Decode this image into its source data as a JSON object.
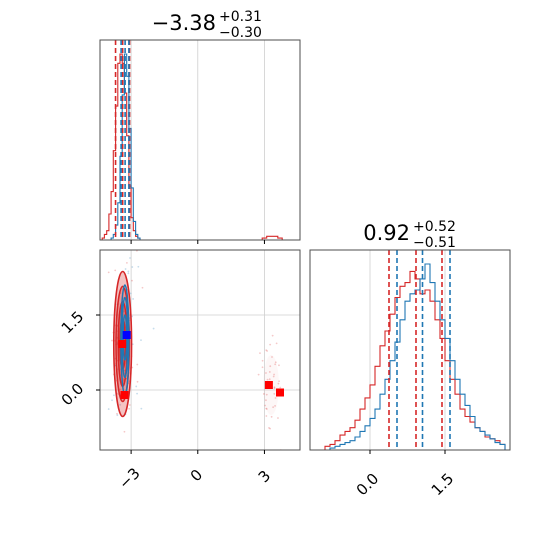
{
  "colors": {
    "series_red": "#d62728",
    "series_blue": "#1f77b4",
    "marker_blue": "#0000ff",
    "marker_red": "#ff0000"
  },
  "chart_data": {
    "type": "corner",
    "series": [
      {
        "name": "",
        "color": "#d62728"
      },
      {
        "name": "",
        "color": "#1f77b4"
      }
    ],
    "panels": [
      {
        "id": "param1-hist",
        "type": "histogram",
        "title": {
          "median": "−3.38",
          "plus": "+0.31",
          "minus": "−0.30"
        },
        "xlim": [
          -4.4,
          4.6
        ],
        "x_gridlines": [
          -3,
          0,
          3
        ],
        "quantile_lines": {
          "red": [
            -3.7,
            -3.38,
            -3.07
          ],
          "blue": [
            -3.45,
            -3.27,
            -3.1
          ]
        },
        "bins": [
          -4.3,
          -4.2,
          -4.1,
          -4.0,
          -3.9,
          -3.8,
          -3.7,
          -3.6,
          -3.5,
          -3.4,
          -3.3,
          -3.2,
          -3.1,
          -3.0,
          -2.9,
          -2.8,
          -2.7,
          -2.6,
          2.8,
          2.9,
          3.0,
          3.1,
          3.2,
          3.3,
          3.4,
          3.5,
          3.6,
          3.7,
          3.8,
          3.9
        ],
        "red_counts": [
          1,
          3,
          5,
          14,
          26,
          48,
          72,
          95,
          100,
          95,
          79,
          56,
          29,
          12,
          5,
          2,
          1,
          0,
          0,
          1,
          1,
          2,
          2,
          2,
          2,
          2,
          1,
          1,
          0,
          0
        ],
        "blue_counts": [
          0,
          0,
          0,
          0,
          1,
          3,
          8,
          20,
          45,
          78,
          100,
          88,
          60,
          28,
          10,
          3,
          1,
          0,
          0,
          0,
          0,
          0,
          0,
          0,
          0,
          0,
          0,
          0,
          0,
          0
        ]
      },
      {
        "id": "param2-hist",
        "type": "histogram",
        "title": {
          "median": "0.92",
          "plus": "+0.52",
          "minus": "−0.51"
        },
        "xlim": [
          -1.2,
          2.8
        ],
        "x_ticks": [
          0.0,
          1.5
        ],
        "tick_labels": [
          "0.0",
          "1.5"
        ],
        "x_gridlines": [
          0.0,
          1.5
        ],
        "quantile_lines": {
          "red": [
            0.38,
            0.92,
            1.44
          ],
          "blue": [
            0.54,
            1.05,
            1.6
          ]
        },
        "bins": [
          -0.9,
          -0.8,
          -0.7,
          -0.6,
          -0.5,
          -0.4,
          -0.3,
          -0.2,
          -0.1,
          0.0,
          0.1,
          0.2,
          0.3,
          0.4,
          0.5,
          0.6,
          0.7,
          0.8,
          0.9,
          1.0,
          1.1,
          1.2,
          1.3,
          1.4,
          1.5,
          1.6,
          1.7,
          1.8,
          1.9,
          2.0,
          2.1,
          2.2,
          2.3,
          2.4,
          2.5,
          2.6
        ],
        "red_counts": [
          2,
          3,
          5,
          8,
          10,
          12,
          16,
          22,
          28,
          35,
          45,
          56,
          64,
          73,
          82,
          88,
          90,
          96,
          92,
          84,
          86,
          80,
          70,
          60,
          48,
          38,
          30,
          22,
          18,
          15,
          12,
          10,
          7,
          6,
          5,
          3
        ],
        "blue_counts": [
          0,
          1,
          2,
          3,
          4,
          5,
          7,
          10,
          13,
          17,
          22,
          30,
          38,
          48,
          58,
          70,
          80,
          84,
          86,
          92,
          100,
          90,
          80,
          70,
          60,
          48,
          38,
          30,
          24,
          18,
          12,
          10,
          8,
          6,
          4,
          3
        ]
      },
      {
        "id": "joint-2d",
        "type": "contour",
        "xlim": [
          -4.4,
          4.6
        ],
        "ylim": [
          -1.2,
          2.8
        ],
        "x_ticks": [
          -3,
          0,
          3
        ],
        "x_tick_labels": [
          "−3",
          "0",
          "3"
        ],
        "y_ticks": [
          0.0,
          1.5
        ],
        "y_tick_labels": [
          "0.0",
          "1.5"
        ],
        "x_gridlines": [
          -3,
          0,
          3
        ],
        "y_gridlines": [
          0.0,
          1.5
        ],
        "red_contours": [
          {
            "cx": -3.38,
            "cy": 0.92,
            "rx": 0.12,
            "ry": 0.5
          },
          {
            "cx": -3.38,
            "cy": 0.92,
            "rx": 0.2,
            "ry": 0.85
          },
          {
            "cx": -3.38,
            "cy": 0.92,
            "rx": 0.3,
            "ry": 1.15
          },
          {
            "cx": -3.38,
            "cy": 0.92,
            "rx": 0.4,
            "ry": 1.45
          }
        ],
        "blue_contours": [
          {
            "cx": -3.28,
            "cy": 1.05,
            "rx": 0.08,
            "ry": 0.45
          },
          {
            "cx": -3.28,
            "cy": 1.05,
            "rx": 0.13,
            "ry": 0.8
          },
          {
            "cx": -3.28,
            "cy": 1.0,
            "rx": 0.18,
            "ry": 1.1
          }
        ],
        "red_island": {
          "cx": 3.3,
          "cy": 0.1,
          "rx": 0.35,
          "ry": 0.6
        },
        "markers": [
          {
            "x": -3.2,
            "y": 1.1,
            "color": "#0000ff"
          },
          {
            "x": -3.4,
            "y": 0.92,
            "color": "#ff0000"
          },
          {
            "x": -3.3,
            "y": -0.1,
            "color": "#ff0000"
          },
          {
            "x": 3.2,
            "y": 0.1,
            "color": "#ff0000"
          },
          {
            "x": 3.7,
            "y": -0.05,
            "color": "#ff0000"
          }
        ]
      }
    ]
  }
}
